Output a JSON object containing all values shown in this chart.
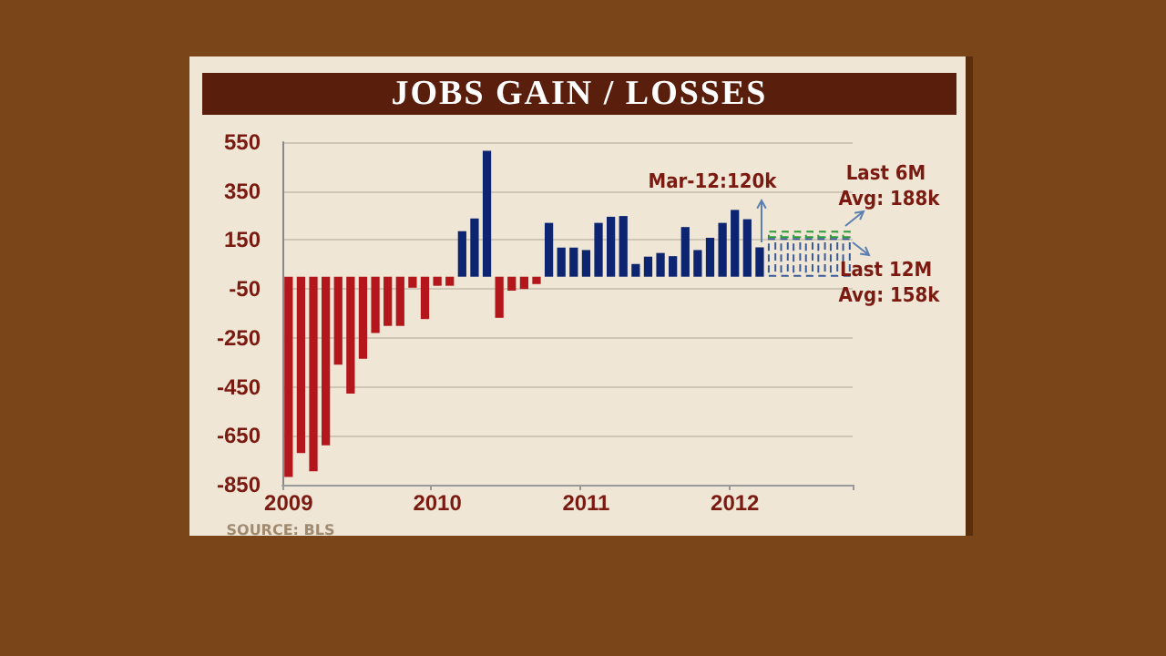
{
  "chart_data": {
    "type": "bar",
    "title": "JOBS GAIN / LOSSES",
    "categories": [
      "2009",
      null,
      null,
      null,
      null,
      null,
      null,
      null,
      null,
      null,
      null,
      null,
      "2010",
      null,
      null,
      null,
      null,
      null,
      null,
      null,
      null,
      null,
      null,
      null,
      "2011",
      null,
      null,
      null,
      null,
      null,
      null,
      null,
      null,
      null,
      null,
      null,
      "2012",
      null,
      null,
      null,
      null,
      null,
      null,
      null,
      null,
      null
    ],
    "series": [
      {
        "values": [
          -818,
          -721,
          -795,
          -689,
          -359,
          -478,
          -335,
          -230,
          -201,
          -201,
          -45,
          -173,
          -37,
          -37,
          186,
          238,
          515,
          -168,
          -57,
          -50,
          -30,
          220,
          119,
          119,
          109,
          220,
          245,
          248,
          52,
          82,
          97,
          84,
          203,
          109,
          159,
          220,
          273,
          235,
          120,
          null,
          null,
          null,
          null,
          null,
          null,
          null
        ],
        "colors": [
          "#b3161b",
          "#b3161b",
          "#b3161b",
          "#b3161b",
          "#b3161b",
          "#b3161b",
          "#b3161b",
          "#b3161b",
          "#b3161b",
          "#b3161b",
          "#b3161b",
          "#b3161b",
          "#b3161b",
          "#b3161b",
          "#0d2470",
          "#0d2470",
          "#0d2470",
          "#b3161b",
          "#b3161b",
          "#b3161b",
          "#b3161b",
          "#0d2470",
          "#0d2470",
          "#0d2470",
          "#0d2470",
          "#0d2470",
          "#0d2470",
          "#0d2470",
          "#0d2470",
          "#0d2470",
          "#0d2470",
          "#0d2470",
          "#0d2470",
          "#0d2470",
          "#0d2470",
          "#0d2470",
          "#0d2470",
          "#0d2470",
          "#0d2470",
          null,
          null,
          null,
          null,
          null,
          null,
          null
        ]
      },
      {
        "color": "#3a5a9a",
        "line_style": "dashed",
        "values": [
          null,
          null,
          null,
          null,
          null,
          null,
          null,
          null,
          null,
          null,
          null,
          null,
          null,
          null,
          null,
          null,
          null,
          null,
          null,
          null,
          null,
          null,
          null,
          null,
          null,
          null,
          null,
          null,
          null,
          null,
          null,
          null,
          null,
          null,
          null,
          null,
          null,
          null,
          null,
          158,
          158,
          158,
          158,
          158,
          158,
          158
        ]
      },
      {
        "color": "#2e9a3a",
        "line_style": "dashed",
        "values": [
          null,
          null,
          null,
          null,
          null,
          null,
          null,
          null,
          null,
          null,
          null,
          null,
          null,
          null,
          null,
          null,
          null,
          null,
          null,
          null,
          null,
          null,
          null,
          null,
          null,
          null,
          null,
          null,
          null,
          null,
          null,
          null,
          null,
          null,
          null,
          null,
          null,
          null,
          null,
          30,
          30,
          30,
          30,
          30,
          30,
          30
        ]
      }
    ],
    "stacked": true,
    "ylim": [
      -850,
      550
    ],
    "yticks": [
      -850,
      -650,
      -450,
      -250,
      -50,
      150,
      350,
      550
    ],
    "grid": "y",
    "annotations": [
      "Mar-12:120k",
      "Last 6M Avg: 188k",
      "Last 12M Avg: 158k",
      "SOURCE: BLS"
    ]
  }
}
